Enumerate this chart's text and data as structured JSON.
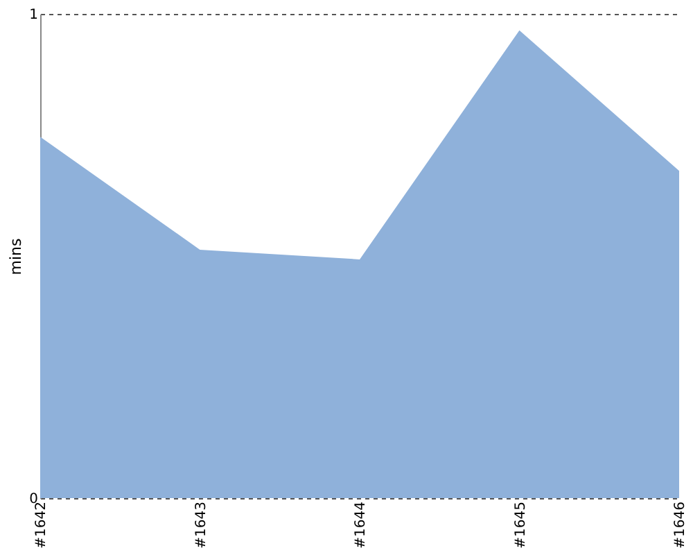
{
  "chart_data": {
    "type": "area",
    "categories": [
      "#1642",
      "#1643",
      "#1644",
      "#1645",
      "#1646"
    ],
    "values": [
      0.746,
      0.513,
      0.493,
      0.966,
      0.676
    ],
    "color": "#8fb1da",
    "ylabel": "mins",
    "ylim": [
      0,
      1
    ],
    "yticks": [
      0,
      1
    ],
    "grid": "y",
    "line_style": "dashed"
  }
}
